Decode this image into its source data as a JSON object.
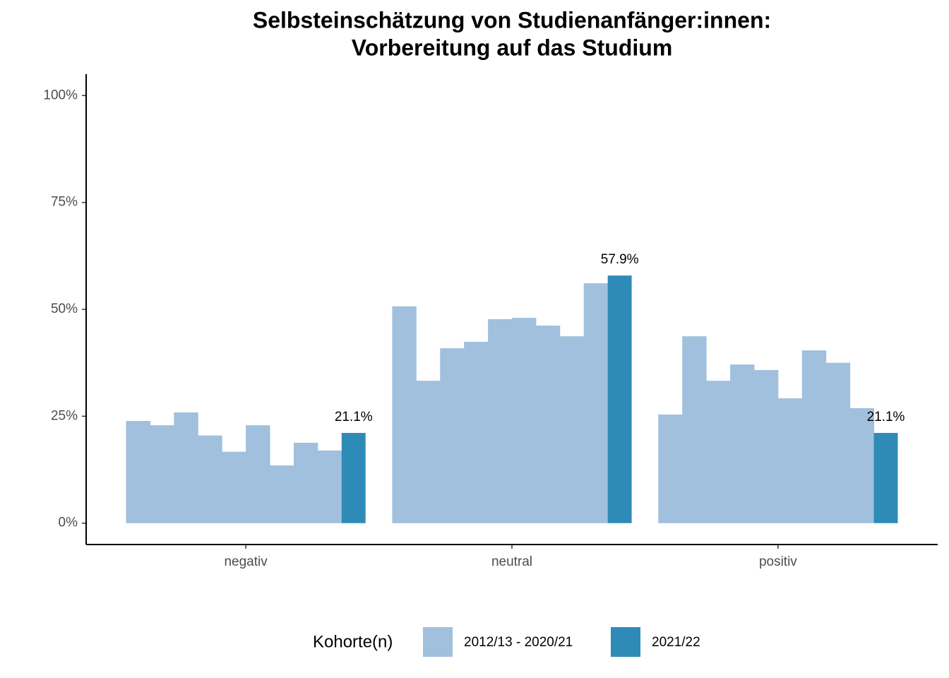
{
  "chart_data": {
    "type": "bar",
    "title": [
      "Selbsteinschätzung von Studienanfänger:innen:",
      "Vorbereitung auf das Studium"
    ],
    "categories": [
      "negativ",
      "neutral",
      "positiv"
    ],
    "series": [
      {
        "name": "2012/13 - 2020/21",
        "color": "#a1c0dd",
        "values": [
          [
            23.9,
            22.9,
            25.9,
            20.5,
            16.7,
            22.9,
            13.5,
            18.8,
            17.0
          ],
          [
            50.7,
            33.3,
            40.9,
            42.4,
            47.7,
            48.0,
            46.2,
            43.7,
            56.1
          ],
          [
            25.4,
            43.7,
            33.3,
            37.1,
            35.8,
            29.2,
            40.4,
            37.5,
            26.9
          ]
        ]
      },
      {
        "name": "2021/22",
        "color": "#2e8bb8",
        "values": [
          21.1,
          57.9,
          21.1
        ],
        "value_labels": [
          "21.1%",
          "57.9%",
          "21.1%"
        ]
      }
    ],
    "ylim": [
      -5,
      105
    ],
    "yticks": [
      {
        "value": 0,
        "label": "0%"
      },
      {
        "value": 25,
        "label": "25%"
      },
      {
        "value": 50,
        "label": "50%"
      },
      {
        "value": 75,
        "label": "75%"
      },
      {
        "value": 100,
        "label": "100%"
      }
    ],
    "legend_title": "Kohorte(n)",
    "legend": "bottom"
  }
}
